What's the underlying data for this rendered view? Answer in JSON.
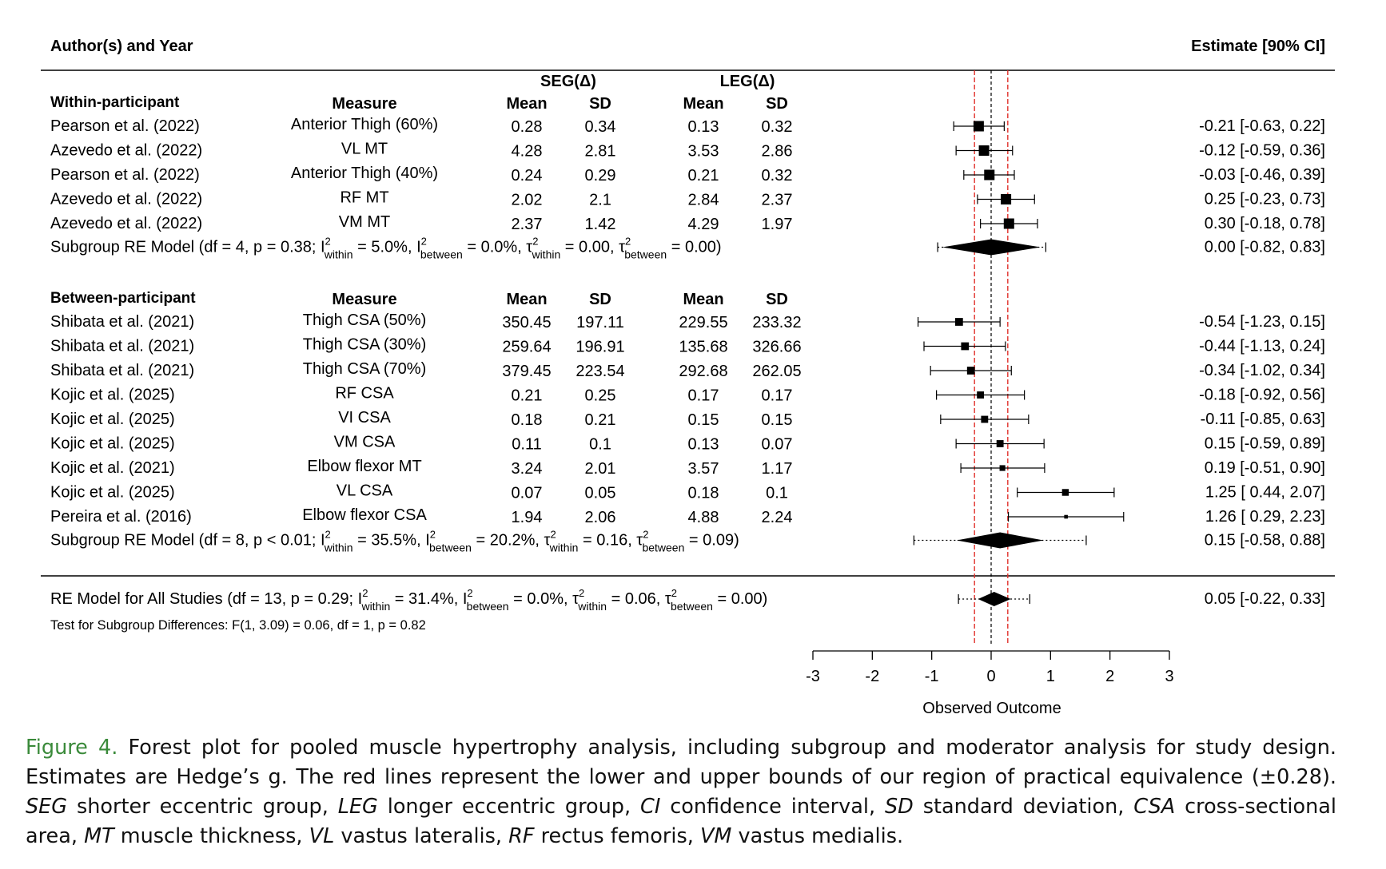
{
  "header": {
    "left_title": "Author(s) and Year",
    "right_title": "Estimate [90% CI]"
  },
  "groups": {
    "seg": "SEG(Δ)",
    "leg": "LEG(Δ)"
  },
  "columns": {
    "measure": "Measure",
    "mean": "Mean",
    "sd": "SD"
  },
  "sections": [
    {
      "label": "Within-participant",
      "studies": [
        {
          "author": "Pearson et al. (2022)",
          "measure": "Anterior Thigh (60%)",
          "seg_mean": "0.28",
          "seg_sd": "0.34",
          "leg_mean": "0.13",
          "leg_sd": "0.32",
          "estimate": "-0.21 [-0.63, 0.22]",
          "est": -0.21,
          "lo": -0.63,
          "hi": 0.22,
          "weight": 1.0
        },
        {
          "author": "Azevedo et al. (2022)",
          "measure": "VL MT",
          "seg_mean": "4.28",
          "seg_sd": "2.81",
          "leg_mean": "3.53",
          "leg_sd": "2.86",
          "estimate": "-0.12 [-0.59, 0.36]",
          "est": -0.12,
          "lo": -0.59,
          "hi": 0.36,
          "weight": 1.0
        },
        {
          "author": "Pearson et al. (2022)",
          "measure": "Anterior Thigh (40%)",
          "seg_mean": "0.24",
          "seg_sd": "0.29",
          "leg_mean": "0.21",
          "leg_sd": "0.32",
          "estimate": "-0.03 [-0.46, 0.39]",
          "est": -0.03,
          "lo": -0.46,
          "hi": 0.39,
          "weight": 1.0
        },
        {
          "author": "Azevedo et al. (2022)",
          "measure": "RF MT",
          "seg_mean": "2.02",
          "seg_sd": "2.1",
          "leg_mean": "2.84",
          "leg_sd": "2.37",
          "estimate": "0.25 [-0.23, 0.73]",
          "est": 0.25,
          "lo": -0.23,
          "hi": 0.73,
          "weight": 1.0
        },
        {
          "author": "Azevedo et al. (2022)",
          "measure": "VM MT",
          "seg_mean": "2.37",
          "seg_sd": "1.42",
          "leg_mean": "4.29",
          "leg_sd": "1.97",
          "estimate": "0.30 [-0.18, 0.78]",
          "est": 0.3,
          "lo": -0.18,
          "hi": 0.78,
          "weight": 1.0
        }
      ],
      "model": {
        "prefix": "Subgroup RE Model (df = 4, p = 0.38; I",
        "i2_within": " = 5.0%, I",
        "i2_between": " = 0.0%, τ",
        "tau_within": " = 0.00, τ",
        "tau_between": " = 0.00)",
        "estimate": "0.00 [-0.82,  0.83]",
        "est": 0.0,
        "lo": -0.82,
        "hi": 0.83,
        "pi_lo": -0.9,
        "pi_hi": 0.92
      }
    },
    {
      "label": "Between-participant",
      "studies": [
        {
          "author": "Shibata et al. (2021)",
          "measure": "Thigh CSA (50%)",
          "seg_mean": "350.45",
          "seg_sd": "197.11",
          "leg_mean": "229.55",
          "leg_sd": "233.32",
          "estimate": "-0.54 [-1.23, 0.15]",
          "est": -0.54,
          "lo": -1.23,
          "hi": 0.15,
          "weight": 0.75
        },
        {
          "author": "Shibata et al. (2021)",
          "measure": "Thigh CSA (30%)",
          "seg_mean": "259.64",
          "seg_sd": "196.91",
          "leg_mean": "135.68",
          "leg_sd": "326.66",
          "estimate": "-0.44 [-1.13, 0.24]",
          "est": -0.44,
          "lo": -1.13,
          "hi": 0.24,
          "weight": 0.75
        },
        {
          "author": "Shibata et al. (2021)",
          "measure": "Thigh CSA (70%)",
          "seg_mean": "379.45",
          "seg_sd": "223.54",
          "leg_mean": "292.68",
          "leg_sd": "262.05",
          "estimate": "-0.34 [-1.02, 0.34]",
          "est": -0.34,
          "lo": -1.02,
          "hi": 0.34,
          "weight": 0.75
        },
        {
          "author": "Kojic et al. (2025)",
          "measure": "RF CSA",
          "seg_mean": "0.21",
          "seg_sd": "0.25",
          "leg_mean": "0.17",
          "leg_sd": "0.17",
          "estimate": "-0.18 [-0.92, 0.56]",
          "est": -0.18,
          "lo": -0.92,
          "hi": 0.56,
          "weight": 0.68
        },
        {
          "author": "Kojic et al. (2025)",
          "measure": "VI CSA",
          "seg_mean": "0.18",
          "seg_sd": "0.21",
          "leg_mean": "0.15",
          "leg_sd": "0.15",
          "estimate": "-0.11 [-0.85, 0.63]",
          "est": -0.11,
          "lo": -0.85,
          "hi": 0.63,
          "weight": 0.68
        },
        {
          "author": "Kojic et al. (2025)",
          "measure": "VM CSA",
          "seg_mean": "0.11",
          "seg_sd": "0.1",
          "leg_mean": "0.13",
          "leg_sd": "0.07",
          "estimate": "0.15 [-0.59, 0.89]",
          "est": 0.15,
          "lo": -0.59,
          "hi": 0.89,
          "weight": 0.68
        },
        {
          "author": "Kojic et al. (2021)",
          "measure": "Elbow flexor MT",
          "seg_mean": "3.24",
          "seg_sd": "2.01",
          "leg_mean": "3.57",
          "leg_sd": "1.17",
          "estimate": "0.19 [-0.51, 0.90]",
          "est": 0.19,
          "lo": -0.51,
          "hi": 0.9,
          "weight": 0.55
        },
        {
          "author": "Kojic et al. (2025)",
          "measure": "VL CSA",
          "seg_mean": "0.07",
          "seg_sd": "0.05",
          "leg_mean": "0.18",
          "leg_sd": "0.1",
          "estimate": "1.25 [ 0.44, 2.07]",
          "est": 1.25,
          "lo": 0.44,
          "hi": 2.07,
          "weight": 0.65
        },
        {
          "author": "Pereira et al. (2016)",
          "measure": "Elbow flexor CSA",
          "seg_mean": "1.94",
          "seg_sd": "2.06",
          "leg_mean": "4.88",
          "leg_sd": "2.24",
          "estimate": "1.26 [ 0.29, 2.23]",
          "est": 1.26,
          "lo": 0.29,
          "hi": 2.23,
          "weight": 0.35
        }
      ],
      "model": {
        "prefix": "Subgroup RE Model (df = 8, p < 0.01; I",
        "i2_within": " = 35.5%, I",
        "i2_between": " = 20.2%, τ",
        "tau_within": " = 0.16, τ",
        "tau_between": " = 0.09)",
        "estimate": "0.15 [-0.58,  0.88]",
        "est": 0.15,
        "lo": -0.58,
        "hi": 0.88,
        "pi_lo": -1.3,
        "pi_hi": 1.6
      }
    }
  ],
  "overall": {
    "prefix": "RE Model for All Studies (df = 13, p = 0.29; I",
    "i2_within": " = 31.4%, I",
    "i2_between": " = 0.0%, τ",
    "tau_within": " = 0.06, τ",
    "tau_between": " = 0.00)",
    "estimate": "0.05 [-0.22,  0.33]",
    "est": 0.05,
    "lo": -0.22,
    "hi": 0.33,
    "pi_lo": -0.55,
    "pi_hi": 0.65
  },
  "subgroup_test": "Test for Subgroup Differences: F(1, 3.09) = 0.06, df = 1, p = 0.82",
  "stat_labels": {
    "sup": "2",
    "within": "within",
    "between": "between"
  },
  "chart_data": {
    "type": "forest",
    "xlabel": "Observed Outcome",
    "xlim": [
      -3,
      3
    ],
    "xticks": [
      "-3",
      "-2",
      "-1",
      "0",
      "1",
      "2",
      "3"
    ],
    "reference_line": 0,
    "equivalence_bounds": [
      -0.28,
      0.28
    ],
    "reference_color": "#000000",
    "equivalence_color": "#e0302a"
  },
  "caption": {
    "label": "Figure 4.",
    "text": " Forest plot for pooled muscle hypertrophy analysis, including subgroup and moderator analysis for study design. Estimates are Hedge’s g. The red lines represent the lower and upper bounds of our region of practical equivalence (±0.28). ",
    "abbrev": [
      {
        "abbr": "SEG",
        "def": " shorter eccentric group, "
      },
      {
        "abbr": "LEG",
        "def": " longer eccentric group, "
      },
      {
        "abbr": "CI",
        "def": " confidence interval, "
      },
      {
        "abbr": "SD",
        "def": " standard deviation, "
      },
      {
        "abbr": "CSA",
        "def": " cross-sectional area, "
      },
      {
        "abbr": "MT",
        "def": " muscle thickness, "
      },
      {
        "abbr": "VL",
        "def": " vastus lateralis, "
      },
      {
        "abbr": "RF",
        "def": " rectus femoris, "
      },
      {
        "abbr": "VM",
        "def": " vastus medialis."
      }
    ]
  }
}
